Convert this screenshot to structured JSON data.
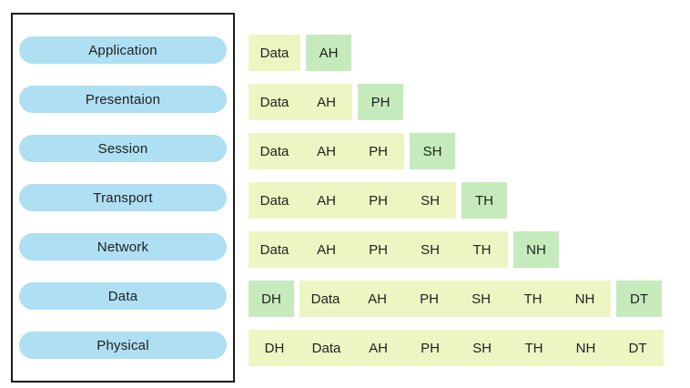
{
  "colors": {
    "layer_pill_blue": "#AEDFF2",
    "payload_yellow": "#EDF6C3",
    "header_green": "#C5EBBC",
    "box_border": "#1A1A1A",
    "text": "#1F1F1F",
    "background": "#FFFFFF"
  },
  "osi_layers_panel": {
    "layers": [
      "Application",
      "Presentaion",
      "Session",
      "Transport",
      "Network",
      "Data",
      "Physical"
    ]
  },
  "encapsulation_rows": [
    {
      "layer": "Application",
      "segments": [
        {
          "type": "payload",
          "labels": [
            "Data"
          ]
        },
        {
          "type": "header",
          "labels": [
            "AH"
          ]
        }
      ]
    },
    {
      "layer": "Presentaion",
      "segments": [
        {
          "type": "payload",
          "labels": [
            "Data",
            "AH"
          ]
        },
        {
          "type": "header",
          "labels": [
            "PH"
          ]
        }
      ]
    },
    {
      "layer": "Session",
      "segments": [
        {
          "type": "payload",
          "labels": [
            "Data",
            "AH",
            "PH"
          ]
        },
        {
          "type": "header",
          "labels": [
            "SH"
          ]
        }
      ]
    },
    {
      "layer": "Transport",
      "segments": [
        {
          "type": "payload",
          "labels": [
            "Data",
            "AH",
            "PH",
            "SH"
          ]
        },
        {
          "type": "header",
          "labels": [
            "TH"
          ]
        }
      ]
    },
    {
      "layer": "Network",
      "segments": [
        {
          "type": "payload",
          "labels": [
            "Data",
            "AH",
            "PH",
            "SH",
            "TH"
          ]
        },
        {
          "type": "header",
          "labels": [
            "NH"
          ]
        }
      ]
    },
    {
      "layer": "Data",
      "segments": [
        {
          "type": "header",
          "labels": [
            "DH"
          ]
        },
        {
          "type": "payload",
          "labels": [
            "Data",
            "AH",
            "PH",
            "SH",
            "TH",
            "NH"
          ]
        },
        {
          "type": "header",
          "labels": [
            "DT"
          ]
        }
      ]
    },
    {
      "layer": "Physical",
      "segments": [
        {
          "type": "payload",
          "labels": [
            "DH",
            "Data",
            "AH",
            "PH",
            "SH",
            "TH",
            "NH",
            "DT"
          ]
        }
      ]
    }
  ]
}
